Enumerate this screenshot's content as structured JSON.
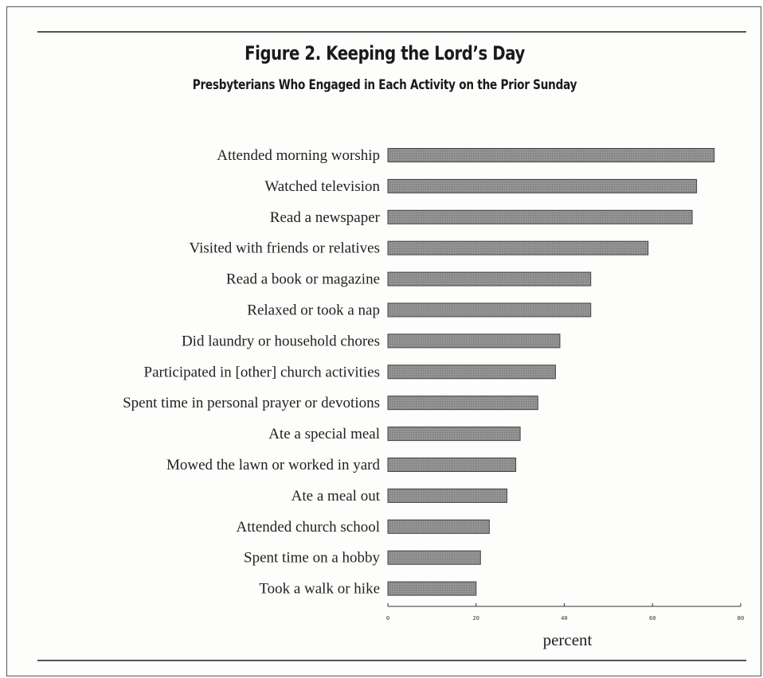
{
  "chart_data": {
    "type": "bar",
    "orientation": "horizontal",
    "title": "Figure 2. Keeping the Lord’s Day",
    "subtitle": "Presbyterians Who Engaged in Each Activity on the Prior Sunday",
    "xlabel": "percent",
    "xlim": [
      0,
      80
    ],
    "xticks": [
      0,
      20,
      40,
      60,
      80
    ],
    "xtick_labels": [
      "0",
      "20",
      "40",
      "60",
      "80"
    ],
    "grid": false,
    "bar_color": "#8a8a8a",
    "categories": [
      "Attended morning worship",
      "Watched television",
      "Read a newspaper",
      "Visited with friends or relatives",
      "Read a book or magazine",
      "Relaxed or took a nap",
      "Did laundry or household chores",
      "Participated in [other] church activities",
      "Spent time in personal prayer or devotions",
      "Ate a special meal",
      "Mowed the lawn or worked in yard",
      "Ate a meal out",
      "Attended church school",
      "Spent time on a hobby",
      "Took a walk or hike"
    ],
    "values": [
      74,
      70,
      69,
      59,
      46,
      46,
      39,
      38,
      34,
      30,
      29,
      27,
      23,
      21,
      20
    ]
  }
}
